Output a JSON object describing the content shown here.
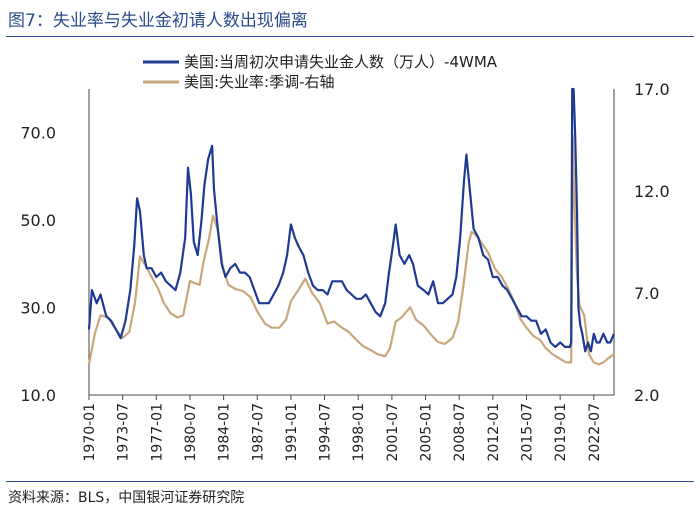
{
  "page": {
    "title": "图7：失业率与失业金初请人数出现偏离",
    "source": "资料来源：BLS，中国银河证券研究院"
  },
  "chart_data": {
    "type": "line",
    "title": "图7：失业率与失业金初请人数出现偏离",
    "x_tick_labels": [
      "1970-01",
      "1973-07",
      "1977-01",
      "1980-07",
      "1984-01",
      "1987-07",
      "1991-01",
      "1994-07",
      "1998-01",
      "2001-07",
      "2005-01",
      "2008-07",
      "2012-01",
      "2015-07",
      "2019-01",
      "2022-07"
    ],
    "x_range": [
      1970.0,
      2024.6
    ],
    "y_left": {
      "range": [
        10,
        80
      ],
      "ticks": [
        10,
        30,
        50,
        70
      ],
      "tick_labels": [
        "10.0",
        "30.0",
        "50.0",
        "70.0"
      ]
    },
    "y_right": {
      "range": [
        2,
        17
      ],
      "ticks": [
        2,
        7,
        12,
        17
      ],
      "tick_labels": [
        "2.0",
        "7.0",
        "12.0",
        "17.0"
      ]
    },
    "legend_position": "top-center",
    "series": [
      {
        "name": "美国:当周初次申请失业金人数（万人）-4WMA",
        "axis": "left",
        "color": "#1f3a93",
        "points": [
          [
            1970.0,
            25
          ],
          [
            1970.3,
            34
          ],
          [
            1970.8,
            31
          ],
          [
            1971.2,
            33
          ],
          [
            1971.8,
            28
          ],
          [
            1972.3,
            27
          ],
          [
            1972.8,
            25
          ],
          [
            1973.3,
            23
          ],
          [
            1973.8,
            27
          ],
          [
            1974.3,
            34
          ],
          [
            1974.7,
            44
          ],
          [
            1975.0,
            55
          ],
          [
            1975.3,
            52
          ],
          [
            1975.7,
            42
          ],
          [
            1976.0,
            39
          ],
          [
            1976.5,
            39
          ],
          [
            1977.0,
            37
          ],
          [
            1977.5,
            38
          ],
          [
            1978.0,
            36
          ],
          [
            1978.5,
            35
          ],
          [
            1979.0,
            34
          ],
          [
            1979.5,
            38
          ],
          [
            1980.0,
            46
          ],
          [
            1980.3,
            62
          ],
          [
            1980.6,
            56
          ],
          [
            1980.9,
            45
          ],
          [
            1981.3,
            42
          ],
          [
            1981.7,
            50
          ],
          [
            1982.0,
            58
          ],
          [
            1982.4,
            64
          ],
          [
            1982.8,
            67
          ],
          [
            1983.0,
            57
          ],
          [
            1983.4,
            48
          ],
          [
            1983.8,
            40
          ],
          [
            1984.2,
            37
          ],
          [
            1984.7,
            39
          ],
          [
            1985.2,
            40
          ],
          [
            1985.7,
            38
          ],
          [
            1986.2,
            38
          ],
          [
            1986.7,
            37
          ],
          [
            1987.2,
            34
          ],
          [
            1987.7,
            31
          ],
          [
            1988.2,
            31
          ],
          [
            1988.7,
            31
          ],
          [
            1989.2,
            33
          ],
          [
            1989.7,
            35
          ],
          [
            1990.2,
            38
          ],
          [
            1990.6,
            42
          ],
          [
            1991.0,
            49
          ],
          [
            1991.4,
            46
          ],
          [
            1991.8,
            44
          ],
          [
            1992.3,
            42
          ],
          [
            1992.8,
            38
          ],
          [
            1993.3,
            35
          ],
          [
            1993.8,
            34
          ],
          [
            1994.3,
            34
          ],
          [
            1994.8,
            33
          ],
          [
            1995.3,
            36
          ],
          [
            1995.8,
            36
          ],
          [
            1996.3,
            36
          ],
          [
            1996.8,
            34
          ],
          [
            1997.3,
            33
          ],
          [
            1997.8,
            32
          ],
          [
            1998.3,
            32
          ],
          [
            1998.8,
            33
          ],
          [
            1999.3,
            31
          ],
          [
            1999.8,
            29
          ],
          [
            2000.3,
            28
          ],
          [
            2000.8,
            31
          ],
          [
            2001.2,
            38
          ],
          [
            2001.6,
            44
          ],
          [
            2001.9,
            49
          ],
          [
            2002.3,
            42
          ],
          [
            2002.8,
            40
          ],
          [
            2003.3,
            42
          ],
          [
            2003.7,
            40
          ],
          [
            2004.2,
            35
          ],
          [
            2004.8,
            34
          ],
          [
            2005.3,
            33
          ],
          [
            2005.8,
            36
          ],
          [
            2006.3,
            31
          ],
          [
            2006.8,
            31
          ],
          [
            2007.3,
            32
          ],
          [
            2007.8,
            33
          ],
          [
            2008.2,
            37
          ],
          [
            2008.6,
            46
          ],
          [
            2009.0,
            59
          ],
          [
            2009.25,
            65
          ],
          [
            2009.6,
            57
          ],
          [
            2010.0,
            48
          ],
          [
            2010.5,
            46
          ],
          [
            2011.0,
            42
          ],
          [
            2011.5,
            41
          ],
          [
            2012.0,
            37
          ],
          [
            2012.5,
            37
          ],
          [
            2013.0,
            35
          ],
          [
            2013.5,
            34
          ],
          [
            2014.0,
            32
          ],
          [
            2014.5,
            30
          ],
          [
            2015.0,
            28
          ],
          [
            2015.5,
            28
          ],
          [
            2016.0,
            27
          ],
          [
            2016.5,
            27
          ],
          [
            2017.0,
            24
          ],
          [
            2017.5,
            25
          ],
          [
            2018.0,
            22
          ],
          [
            2018.5,
            21
          ],
          [
            2019.0,
            22
          ],
          [
            2019.5,
            21
          ],
          [
            2020.0,
            21
          ],
          [
            2020.15,
            22
          ],
          [
            2020.25,
            80
          ],
          [
            2020.4,
            80
          ],
          [
            2020.55,
            70
          ],
          [
            2020.75,
            52
          ],
          [
            2020.9,
            30
          ],
          [
            2021.1,
            26
          ],
          [
            2021.3,
            24
          ],
          [
            2021.6,
            20
          ],
          [
            2021.9,
            22
          ],
          [
            2022.2,
            20
          ],
          [
            2022.5,
            24
          ],
          [
            2022.8,
            22
          ],
          [
            2023.1,
            22
          ],
          [
            2023.5,
            24
          ],
          [
            2023.9,
            22
          ],
          [
            2024.2,
            22
          ],
          [
            2024.6,
            24
          ]
        ]
      },
      {
        "name": "美国:失业率:季调-右轴",
        "axis": "right",
        "color": "#c9a77c",
        "points": [
          [
            1970.0,
            3.5
          ],
          [
            1970.6,
            5.0
          ],
          [
            1971.2,
            5.9
          ],
          [
            1972.0,
            5.8
          ],
          [
            1972.8,
            5.2
          ],
          [
            1973.5,
            4.8
          ],
          [
            1974.2,
            5.1
          ],
          [
            1974.8,
            6.6
          ],
          [
            1975.3,
            8.8
          ],
          [
            1975.8,
            8.4
          ],
          [
            1976.5,
            7.8
          ],
          [
            1977.2,
            7.2
          ],
          [
            1977.8,
            6.5
          ],
          [
            1978.5,
            6.0
          ],
          [
            1979.2,
            5.8
          ],
          [
            1979.8,
            5.9
          ],
          [
            1980.5,
            7.6
          ],
          [
            1980.9,
            7.5
          ],
          [
            1981.5,
            7.4
          ],
          [
            1981.9,
            8.5
          ],
          [
            1982.5,
            9.7
          ],
          [
            1982.9,
            10.8
          ],
          [
            1983.4,
            10.1
          ],
          [
            1983.9,
            8.3
          ],
          [
            1984.5,
            7.4
          ],
          [
            1985.2,
            7.2
          ],
          [
            1986.0,
            7.1
          ],
          [
            1986.8,
            6.8
          ],
          [
            1987.5,
            6.1
          ],
          [
            1988.3,
            5.5
          ],
          [
            1989.0,
            5.3
          ],
          [
            1989.8,
            5.3
          ],
          [
            1990.5,
            5.7
          ],
          [
            1991.0,
            6.6
          ],
          [
            1991.7,
            7.1
          ],
          [
            1992.5,
            7.7
          ],
          [
            1993.2,
            7.0
          ],
          [
            1994.0,
            6.5
          ],
          [
            1994.8,
            5.5
          ],
          [
            1995.5,
            5.6
          ],
          [
            1996.3,
            5.3
          ],
          [
            1997.0,
            5.1
          ],
          [
            1997.8,
            4.7
          ],
          [
            1998.5,
            4.4
          ],
          [
            1999.3,
            4.2
          ],
          [
            2000.0,
            4.0
          ],
          [
            2000.8,
            3.9
          ],
          [
            2001.3,
            4.3
          ],
          [
            2001.9,
            5.6
          ],
          [
            2002.5,
            5.8
          ],
          [
            2003.4,
            6.3
          ],
          [
            2004.0,
            5.7
          ],
          [
            2004.8,
            5.4
          ],
          [
            2005.5,
            5.0
          ],
          [
            2006.3,
            4.6
          ],
          [
            2007.0,
            4.5
          ],
          [
            2007.8,
            4.8
          ],
          [
            2008.4,
            5.6
          ],
          [
            2008.9,
            7.2
          ],
          [
            2009.5,
            9.5
          ],
          [
            2009.8,
            10.0
          ],
          [
            2010.3,
            9.8
          ],
          [
            2010.9,
            9.4
          ],
          [
            2011.5,
            9.0
          ],
          [
            2012.2,
            8.2
          ],
          [
            2012.9,
            7.8
          ],
          [
            2013.5,
            7.3
          ],
          [
            2014.2,
            6.6
          ],
          [
            2014.9,
            5.7
          ],
          [
            2015.5,
            5.3
          ],
          [
            2016.2,
            4.9
          ],
          [
            2016.9,
            4.7
          ],
          [
            2017.5,
            4.3
          ],
          [
            2018.2,
            4.0
          ],
          [
            2018.9,
            3.8
          ],
          [
            2019.6,
            3.6
          ],
          [
            2020.15,
            3.6
          ],
          [
            2020.3,
            14.7
          ],
          [
            2020.5,
            11.1
          ],
          [
            2020.75,
            7.9
          ],
          [
            2021.0,
            6.4
          ],
          [
            2021.5,
            5.9
          ],
          [
            2022.0,
            4.0
          ],
          [
            2022.5,
            3.6
          ],
          [
            2023.0,
            3.5
          ],
          [
            2023.5,
            3.6
          ],
          [
            2024.0,
            3.8
          ],
          [
            2024.6,
            4.0
          ]
        ]
      }
    ]
  }
}
